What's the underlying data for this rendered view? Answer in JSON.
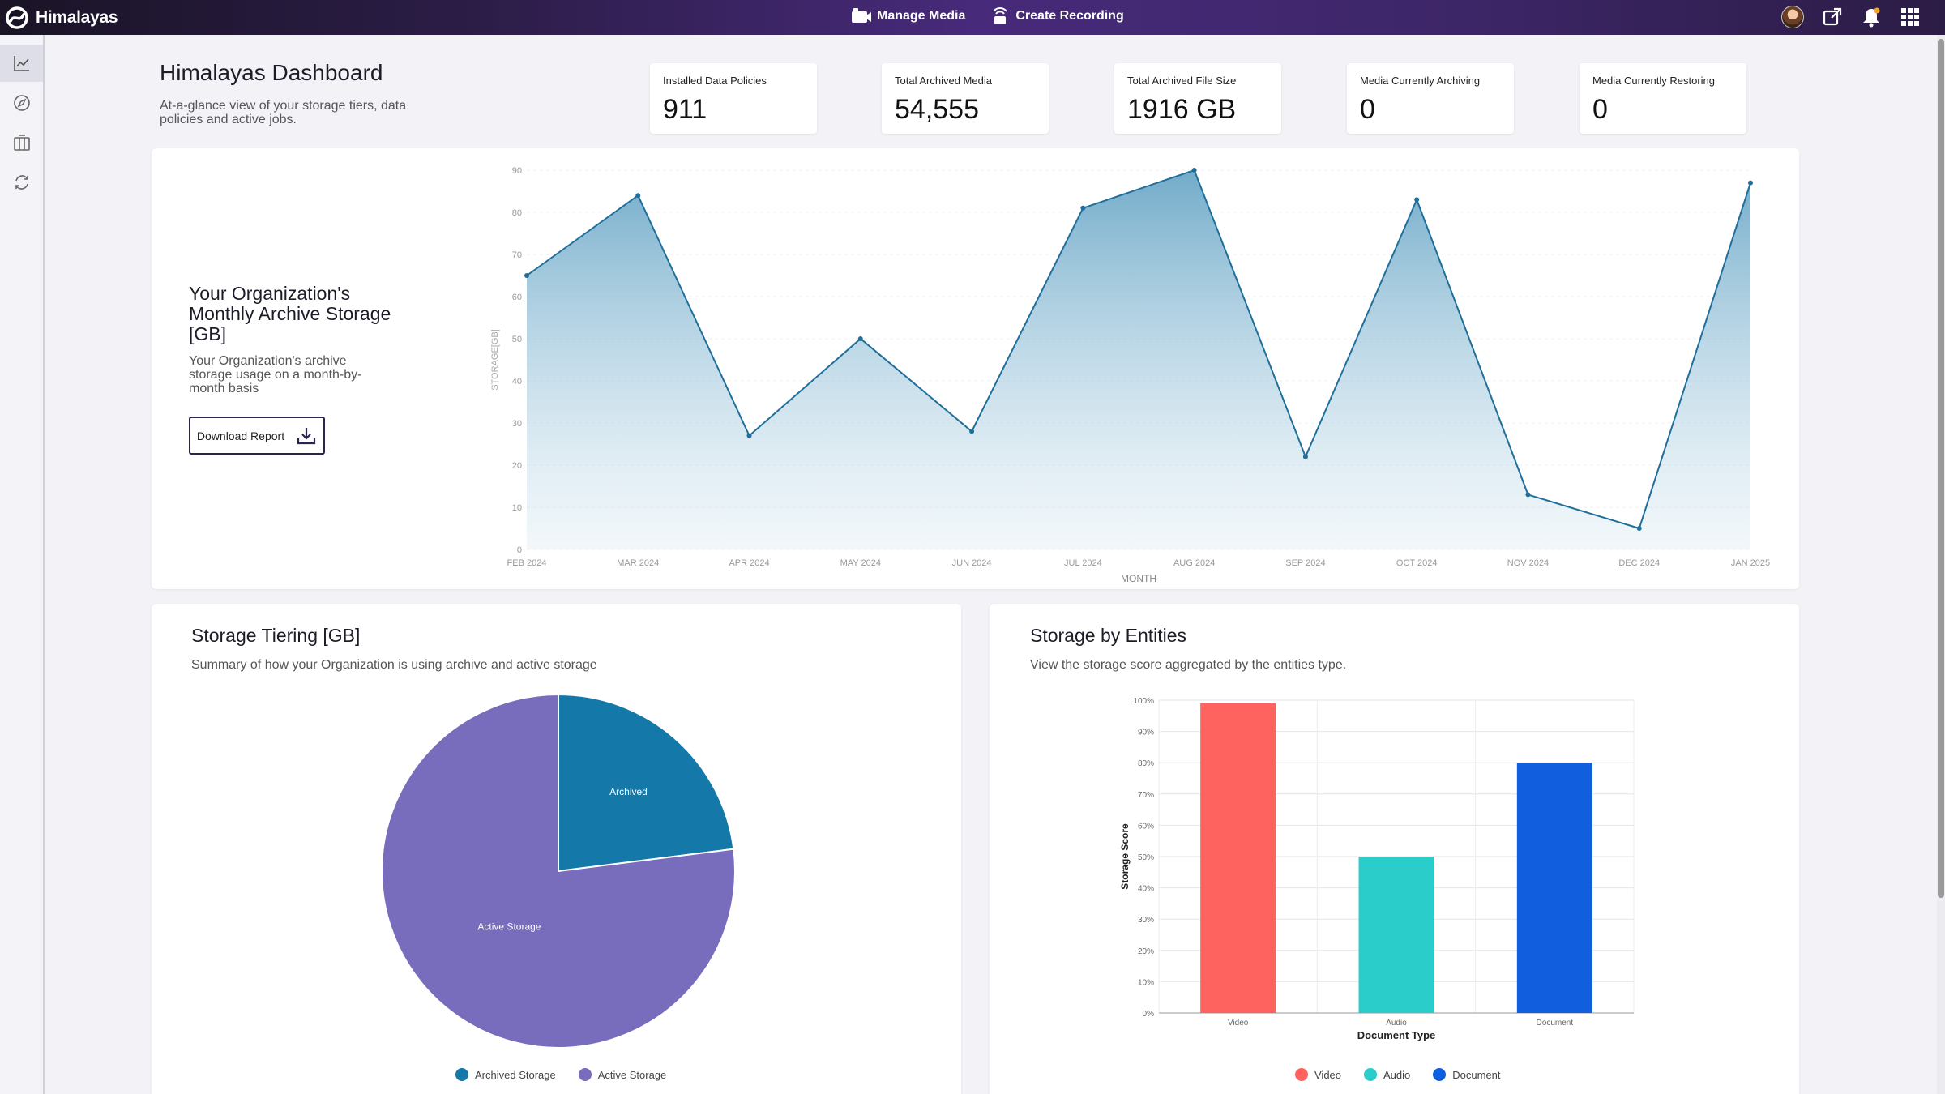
{
  "topbar": {
    "brand": "Himalayas",
    "actions": [
      {
        "label": "Manage Media",
        "icon": "video-icon"
      },
      {
        "label": "Create Recording",
        "icon": "broadcast-icon"
      }
    ]
  },
  "header": {
    "title": "Himalayas Dashboard",
    "subtitle": "At-a-glance view of your storage tiers, data policies and active jobs."
  },
  "stats": [
    {
      "label": "Installed Data Policies",
      "value": "911"
    },
    {
      "label": "Total Archived Media",
      "value": "54,555"
    },
    {
      "label": "Total Archived File Size",
      "value": "1916 GB"
    },
    {
      "label": "Media Currently Archiving",
      "value": "0"
    },
    {
      "label": "Media Currently Restoring",
      "value": "0"
    }
  ],
  "monthly": {
    "title": "Your Organization's Monthly Archive Storage [GB]",
    "subtitle": "Your Organization's archive storage usage on a month-by-month basis",
    "download_label": "Download Report"
  },
  "tiering": {
    "title": "Storage Tiering [GB]",
    "subtitle": "Summary of how your Organization is using archive and active storage"
  },
  "entities": {
    "title": "Storage by Entities",
    "subtitle": "View the storage score aggregated by the entities type."
  },
  "chart_data": [
    {
      "type": "area",
      "x": [
        "FEB 2024",
        "MAR 2024",
        "APR 2024",
        "MAY 2024",
        "JUN 2024",
        "JUL 2024",
        "AUG 2024",
        "SEP 2024",
        "OCT 2024",
        "NOV 2024",
        "DEC 2024",
        "JAN 2025"
      ],
      "series": [
        {
          "values": [
            65,
            84,
            27,
            50,
            28,
            81,
            90,
            22,
            83,
            13,
            5,
            87
          ]
        }
      ],
      "xlabel": "MONTH",
      "ylabel": "STORAGE[GB]",
      "ylim": [
        0,
        90
      ],
      "yticks": [
        0,
        10,
        20,
        30,
        40,
        50,
        60,
        70,
        80,
        90
      ],
      "color": "#1f6f9a",
      "grid": true
    },
    {
      "type": "pie",
      "slices": [
        {
          "label": "Archived",
          "legend": "Archived Storage",
          "value": 23,
          "color": "#1478a8"
        },
        {
          "label": "Active Storage",
          "legend": "Active Storage",
          "value": 77,
          "color": "#786cbd"
        }
      ],
      "legend_position": "bottom"
    },
    {
      "type": "bar",
      "categories": [
        "Video",
        "Audio",
        "Document"
      ],
      "values": [
        99,
        50,
        80
      ],
      "colors": [
        "#ff6360",
        "#2bcdcb",
        "#115fdf"
      ],
      "xlabel": "Document Type",
      "ylabel": "Storage Score",
      "ylim": [
        0,
        100
      ],
      "yticks": [
        "0%",
        "10%",
        "20%",
        "30%",
        "40%",
        "50%",
        "60%",
        "70%",
        "80%",
        "90%",
        "100%"
      ],
      "legend_position": "bottom",
      "grid": true
    }
  ]
}
